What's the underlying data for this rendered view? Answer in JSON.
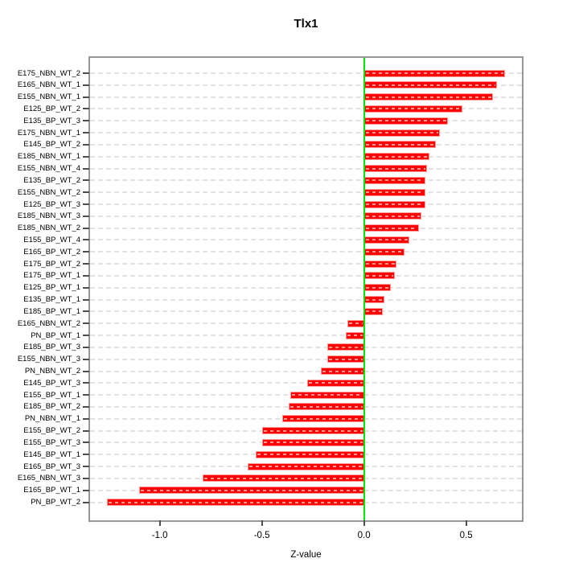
{
  "chart_data": {
    "type": "bar",
    "orientation": "horizontal",
    "title": "Tlx1",
    "xlabel": "Z-value",
    "ylabel": "",
    "legend": "none",
    "grid": "horizontal-dashed",
    "zero_reference_line": true,
    "xlim": [
      -1.341,
      0.773
    ],
    "x_ticks": [
      {
        "value": -1.0,
        "label": "-1.0"
      },
      {
        "value": -0.5,
        "label": "-0.5"
      },
      {
        "value": 0.0,
        "label": "0.0"
      },
      {
        "value": 0.5,
        "label": "0.5"
      }
    ],
    "categories": [
      "E175_NBN_WT_2",
      "E165_NBN_WT_1",
      "E155_NBN_WT_1",
      "E125_BP_WT_2",
      "E135_BP_WT_3",
      "E175_NBN_WT_1",
      "E145_BP_WT_2",
      "E185_NBN_WT_1",
      "E155_NBN_WT_4",
      "E135_BP_WT_2",
      "E155_NBN_WT_2",
      "E125_BP_WT_3",
      "E185_NBN_WT_3",
      "E185_NBN_WT_2",
      "E155_BP_WT_4",
      "E165_BP_WT_2",
      "E175_BP_WT_2",
      "E175_BP_WT_1",
      "E125_BP_WT_1",
      "E135_BP_WT_1",
      "E185_BP_WT_1",
      "E165_NBN_WT_2",
      "PN_BP_WT_1",
      "E185_BP_WT_3",
      "E155_NBN_WT_3",
      "PN_NBN_WT_2",
      "E145_BP_WT_3",
      "E155_BP_WT_1",
      "E185_BP_WT_2",
      "PN_NBN_WT_1",
      "E155_BP_WT_2",
      "E155_BP_WT_3",
      "E145_BP_WT_1",
      "E165_BP_WT_3",
      "E165_NBN_WT_3",
      "E165_BP_WT_1",
      "PN_BP_WT_2"
    ],
    "values": [
      0.69,
      0.65,
      0.63,
      0.48,
      0.41,
      0.37,
      0.35,
      0.32,
      0.31,
      0.3,
      0.3,
      0.3,
      0.28,
      0.27,
      0.22,
      0.2,
      0.16,
      0.15,
      0.13,
      0.1,
      0.09,
      -0.08,
      -0.09,
      -0.18,
      -0.18,
      -0.21,
      -0.28,
      -0.36,
      -0.37,
      -0.4,
      -0.5,
      -0.5,
      -0.53,
      -0.57,
      -0.79,
      -1.1,
      -1.26
    ],
    "colors": {
      "bar": "#ff0000",
      "bar_edge": "#ff9d9d",
      "zero_line": "#00e600",
      "grid": "#e2e2e2",
      "box": "#979797",
      "tick": "#4d4d4d",
      "text": "#000000"
    }
  }
}
